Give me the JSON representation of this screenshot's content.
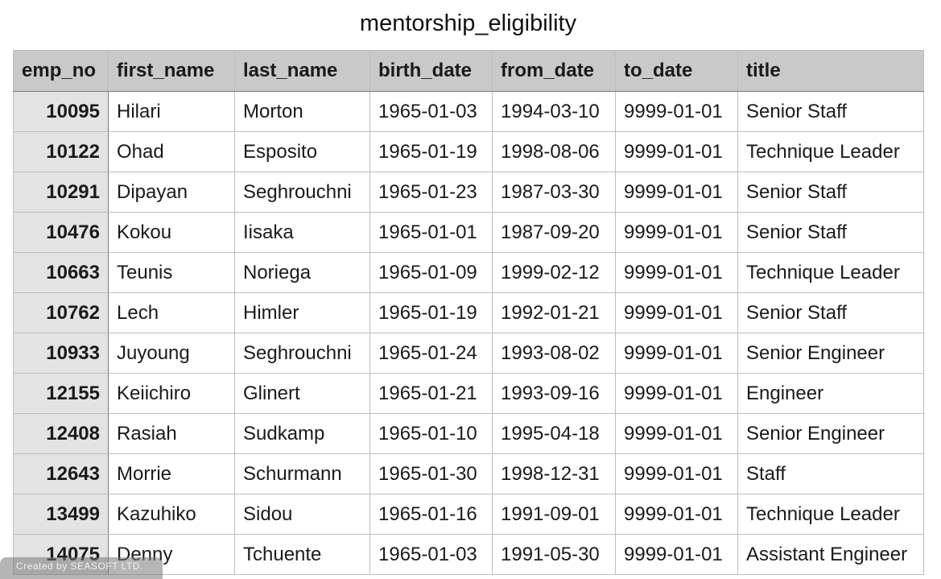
{
  "sheet": {
    "title": "mentorship_eligibility",
    "columns": [
      "emp_no",
      "first_name",
      "last_name",
      "birth_date",
      "from_date",
      "to_date",
      "title"
    ],
    "rows": [
      [
        "10095",
        "Hilari",
        "Morton",
        "1965-01-03",
        "1994-03-10",
        "9999-01-01",
        "Senior Staff"
      ],
      [
        "10122",
        "Ohad",
        "Esposito",
        "1965-01-19",
        "1998-08-06",
        "9999-01-01",
        "Technique Leader"
      ],
      [
        "10291",
        "Dipayan",
        "Seghrouchni",
        "1965-01-23",
        "1987-03-30",
        "9999-01-01",
        "Senior Staff"
      ],
      [
        "10476",
        "Kokou",
        "Iisaka",
        "1965-01-01",
        "1987-09-20",
        "9999-01-01",
        "Senior Staff"
      ],
      [
        "10663",
        "Teunis",
        "Noriega",
        "1965-01-09",
        "1999-02-12",
        "9999-01-01",
        "Technique Leader"
      ],
      [
        "10762",
        "Lech",
        "Himler",
        "1965-01-19",
        "1992-01-21",
        "9999-01-01",
        "Senior Staff"
      ],
      [
        "10933",
        "Juyoung",
        "Seghrouchni",
        "1965-01-24",
        "1993-08-02",
        "9999-01-01",
        "Senior Engineer"
      ],
      [
        "12155",
        "Keiichiro",
        "Glinert",
        "1965-01-21",
        "1993-09-16",
        "9999-01-01",
        "Engineer"
      ],
      [
        "12408",
        "Rasiah",
        "Sudkamp",
        "1965-01-10",
        "1995-04-18",
        "9999-01-01",
        "Senior Engineer"
      ],
      [
        "12643",
        "Morrie",
        "Schurmann",
        "1965-01-30",
        "1998-12-31",
        "9999-01-01",
        "Staff"
      ],
      [
        "13499",
        "Kazuhiko",
        "Sidou",
        "1965-01-16",
        "1991-09-01",
        "9999-01-01",
        "Technique Leader"
      ],
      [
        "14075",
        "Denny",
        "Tchuente",
        "1965-01-03",
        "1991-05-30",
        "9999-01-01",
        "Assistant Engineer"
      ]
    ]
  },
  "watermark": {
    "text": "Created by SEASOFT LTD."
  }
}
